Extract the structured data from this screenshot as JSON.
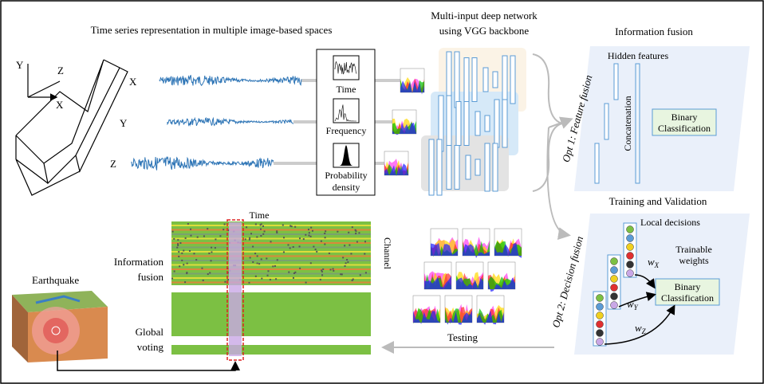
{
  "representation": {
    "title": "Time series representation in multiple image-based spaces",
    "axes": [
      "Y",
      "Z",
      "X"
    ],
    "signals": [
      "X",
      "Y",
      "Z"
    ],
    "spaces": [
      [
        "Time"
      ],
      [
        "Frequency"
      ],
      [
        "Probability",
        "density"
      ]
    ]
  },
  "network": {
    "title": [
      "Multi-input deep network",
      "using VGG backbone"
    ]
  },
  "feature_fusion": {
    "title": "Information fusion",
    "option": "Opt 1: Feature fusion",
    "hidden": "Hidden features",
    "concat": "Concatenation",
    "classifier": [
      "Binary",
      "Classification"
    ]
  },
  "decision_fusion": {
    "title": "Training and Validation",
    "option": "Opt 2: Decision fusion",
    "local": "Local decisions",
    "weights": [
      "Trainable",
      "weights"
    ],
    "w": [
      {
        "base": "w",
        "sub": "X"
      },
      {
        "base": "w",
        "sub": "Y"
      },
      {
        "base": "w",
        "sub": "Z"
      }
    ],
    "classifier": [
      "Binary",
      "Classification"
    ]
  },
  "testing": {
    "time": "Time",
    "channel": "Channel",
    "fusion": [
      "Information",
      "fusion"
    ],
    "voting": [
      "Global",
      "voting"
    ],
    "earthquake": "Earthquake",
    "arrow": "Testing"
  }
}
